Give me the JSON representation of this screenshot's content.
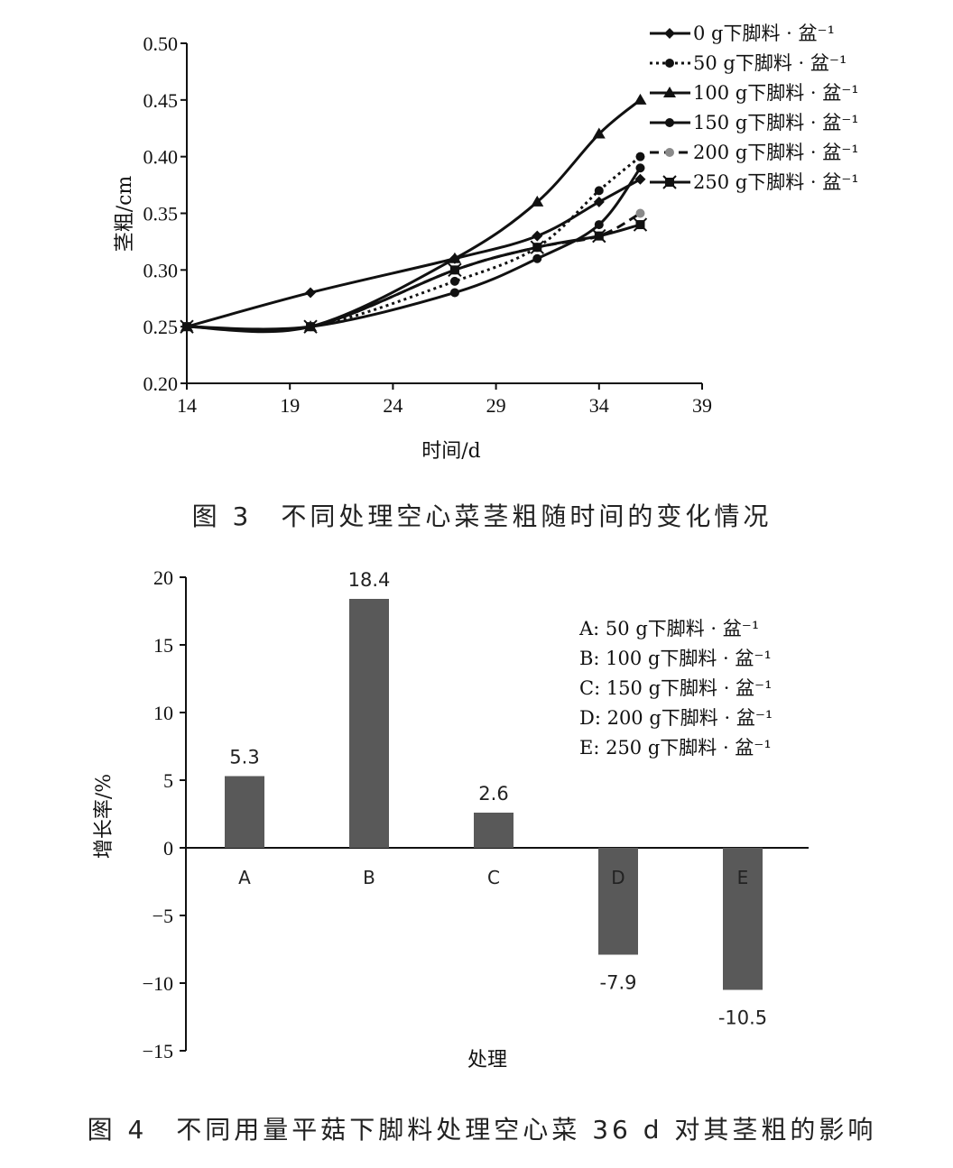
{
  "figure3": {
    "caption": "图 3　不同处理空心菜茎粗随时间的变化情况",
    "chart_data": {
      "type": "line",
      "xlabel": "时间/d",
      "ylabel": "茎粗/cm",
      "xlim": [
        14,
        39
      ],
      "ylim": [
        0.2,
        0.5
      ],
      "xticks": [
        "14",
        "19",
        "24",
        "29",
        "34",
        "39"
      ],
      "yticks": [
        "0.20",
        "0.25",
        "0.30",
        "0.35",
        "0.40",
        "0.45",
        "0.50"
      ],
      "x": [
        14,
        20,
        27,
        31,
        34,
        36
      ],
      "legend_position": "top-right",
      "series": [
        {
          "name": "0 g下脚料 · 盆⁻¹",
          "values": [
            0.25,
            0.28,
            0.31,
            0.33,
            0.36,
            0.38
          ],
          "marker": "diamond",
          "dash": "solid"
        },
        {
          "name": "50 g下脚料 · 盆⁻¹",
          "values": [
            0.25,
            0.25,
            0.29,
            0.32,
            0.37,
            0.4
          ],
          "marker": "circle",
          "dash": "dotted"
        },
        {
          "name": "100 g下脚料 · 盆⁻¹",
          "values": [
            0.25,
            0.25,
            0.31,
            0.36,
            0.42,
            0.45
          ],
          "marker": "triangle",
          "dash": "solid"
        },
        {
          "name": "150 g下脚料 · 盆⁻¹",
          "values": [
            0.25,
            0.25,
            0.28,
            0.31,
            0.34,
            0.39
          ],
          "marker": "circle",
          "dash": "solid"
        },
        {
          "name": "200 g下脚料 · 盆⁻¹",
          "values": [
            0.25,
            0.25,
            0.3,
            0.32,
            0.33,
            0.35
          ],
          "marker": "greycircle",
          "dash": "dashed"
        },
        {
          "name": "250 g下脚料 · 盆⁻¹",
          "values": [
            0.25,
            0.25,
            0.3,
            0.32,
            0.33,
            0.34
          ],
          "marker": "asterisk",
          "dash": "solid"
        }
      ]
    }
  },
  "figure4": {
    "caption": "图 4　不同用量平菇下脚料处理空心菜 36 d 对其茎粗的影响",
    "chart_data": {
      "type": "bar",
      "xlabel": "处理",
      "ylabel": "增长率/%",
      "ylim": [
        -15,
        20
      ],
      "yticks": [
        "20",
        "15",
        "10",
        "5",
        "0",
        "−5",
        "−10",
        "−15"
      ],
      "categories": [
        "A",
        "B",
        "C",
        "D",
        "E"
      ],
      "values": [
        5.3,
        18.4,
        2.6,
        -7.9,
        -10.5
      ],
      "data_labels": [
        "5.3",
        "18.4",
        "2.6",
        "-7.9",
        "-10.5"
      ],
      "bar_color": "#595959",
      "legend": [
        "A: 50 g下脚料 · 盆⁻¹",
        "B: 100 g下脚料 · 盆⁻¹",
        "C: 150 g下脚料 · 盆⁻¹",
        "D: 200 g下脚料 · 盆⁻¹",
        "E: 250 g下脚料 · 盆⁻¹"
      ]
    }
  }
}
